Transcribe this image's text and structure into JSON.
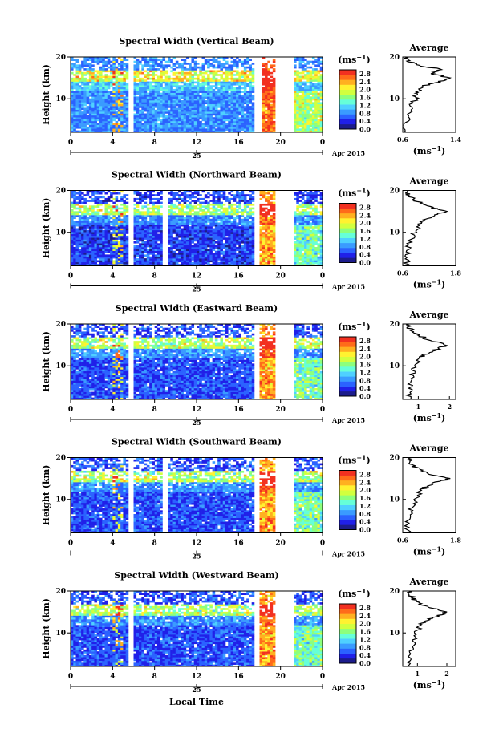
{
  "figure": {
    "xlabel": "Local Time",
    "date_tick": "25",
    "date_note": "Apr 2015",
    "colorbar_unit_base": "(ms",
    "colorbar_unit_exp": "−1",
    "avg_title": "Average",
    "avg_unit_base": "(ms",
    "avg_unit_exp": "−1",
    "ylabel": "Height (km)",
    "x_ticks": [
      "0",
      "4",
      "8",
      "12",
      "16",
      "20",
      "0"
    ],
    "colorbar_ticks": [
      "2.8",
      "2.4",
      "2.0",
      "1.6",
      "1.2",
      "0.8",
      "0.4",
      "0.0"
    ]
  },
  "colors": {
    "scale": [
      "#1c1c8c",
      "#2020e8",
      "#2b62ff",
      "#3a9bff",
      "#4fd0ff",
      "#66ffd8",
      "#8dff7c",
      "#d2ff3e",
      "#fff230",
      "#ffb020",
      "#ff6b1a",
      "#f23020"
    ]
  },
  "chart_data": [
    {
      "type": "heatmap",
      "title": "Spectral Width (Vertical Beam)",
      "xlabel": "Local Time",
      "ylabel": "Height (km)",
      "xlim": [
        0,
        24
      ],
      "ylim": [
        2,
        20
      ],
      "y_ticks": [
        "20",
        "10"
      ],
      "clim": [
        0,
        3
      ],
      "base_level": 0.8,
      "gaps": [
        [
          5.4,
          5.9
        ],
        [
          17.5,
          18.2
        ],
        [
          19.5,
          21.2
        ]
      ],
      "average": {
        "xlim": [
          0.6,
          1.4
        ],
        "x_ticks": [
          "0.6",
          "1.4"
        ],
        "profile": [
          [
            2,
            0.64
          ],
          [
            4,
            0.66
          ],
          [
            6,
            0.68
          ],
          [
            8,
            0.72
          ],
          [
            10,
            0.8
          ],
          [
            11,
            0.78
          ],
          [
            12,
            0.86
          ],
          [
            13,
            0.9
          ],
          [
            14,
            1.15
          ],
          [
            15,
            1.3
          ],
          [
            16,
            1.02
          ],
          [
            17,
            1.2
          ],
          [
            18,
            0.82
          ],
          [
            19,
            0.68
          ],
          [
            20,
            0.64
          ]
        ]
      }
    },
    {
      "type": "heatmap",
      "title": "Spectral Width (Northward Beam)",
      "xlabel": "Local Time",
      "ylabel": "Height (km)",
      "xlim": [
        0,
        24
      ],
      "ylim": [
        2,
        20
      ],
      "y_ticks": [
        "20",
        "10"
      ],
      "clim": [
        0,
        3
      ],
      "base_level": 0.5,
      "gaps": [
        [
          5.4,
          5.9
        ],
        [
          8.8,
          9.2
        ],
        [
          17.5,
          18.0
        ],
        [
          19.6,
          21.2
        ]
      ],
      "average": {
        "xlim": [
          0.6,
          1.8
        ],
        "x_ticks": [
          "0.6",
          "1.8"
        ],
        "profile": [
          [
            2,
            0.68
          ],
          [
            4,
            0.7
          ],
          [
            6,
            0.72
          ],
          [
            8,
            0.78
          ],
          [
            10,
            0.88
          ],
          [
            12,
            0.98
          ],
          [
            13,
            1.1
          ],
          [
            14,
            1.3
          ],
          [
            15,
            1.62
          ],
          [
            16,
            1.22
          ],
          [
            17,
            1.0
          ],
          [
            18,
            0.82
          ],
          [
            19,
            0.72
          ],
          [
            20,
            0.7
          ]
        ]
      }
    },
    {
      "type": "heatmap",
      "title": "Spectral Width (Eastward Beam)",
      "xlabel": "Local Time",
      "ylabel": "Height (km)",
      "xlim": [
        0,
        24
      ],
      "ylim": [
        2,
        20
      ],
      "y_ticks": [
        "20",
        "10"
      ],
      "clim": [
        0,
        3
      ],
      "base_level": 0.55,
      "gaps": [
        [
          5.4,
          5.9
        ],
        [
          17.5,
          18.0
        ],
        [
          19.6,
          21.2
        ]
      ],
      "average": {
        "xlim": [
          0.5,
          2.2
        ],
        "x_ticks": [
          "1",
          "2"
        ],
        "profile": [
          [
            2,
            0.7
          ],
          [
            4,
            0.72
          ],
          [
            6,
            0.76
          ],
          [
            8,
            0.8
          ],
          [
            10,
            0.92
          ],
          [
            12,
            1.1
          ],
          [
            13,
            1.3
          ],
          [
            14,
            1.6
          ],
          [
            15,
            1.9
          ],
          [
            16,
            1.4
          ],
          [
            17,
            1.1
          ],
          [
            18,
            0.85
          ],
          [
            19,
            0.72
          ],
          [
            20,
            0.7
          ]
        ]
      }
    },
    {
      "type": "heatmap",
      "title": "Spectral Width (Southward Beam)",
      "xlabel": "Local Time",
      "ylabel": "Height (km)",
      "xlim": [
        0,
        24
      ],
      "ylim": [
        2,
        20
      ],
      "y_ticks": [
        "20",
        "10"
      ],
      "clim": [
        0,
        3
      ],
      "base_level": 0.55,
      "gaps": [
        [
          5.4,
          5.9
        ],
        [
          8.8,
          9.2
        ],
        [
          17.5,
          18.0
        ],
        [
          19.6,
          21.2
        ]
      ],
      "average": {
        "xlim": [
          0.6,
          1.8
        ],
        "x_ticks": [
          "0.6",
          "1.8"
        ],
        "profile": [
          [
            2,
            0.7
          ],
          [
            4,
            0.72
          ],
          [
            6,
            0.74
          ],
          [
            8,
            0.8
          ],
          [
            10,
            0.9
          ],
          [
            12,
            1.0
          ],
          [
            13,
            1.12
          ],
          [
            14,
            1.35
          ],
          [
            15,
            1.65
          ],
          [
            16,
            1.25
          ],
          [
            17,
            1.0
          ],
          [
            18,
            0.84
          ],
          [
            19,
            0.74
          ],
          [
            20,
            0.72
          ]
        ]
      }
    },
    {
      "type": "heatmap",
      "title": "Spectral Width (Westward Beam)",
      "xlabel": "Local Time",
      "ylabel": "Height (km)",
      "xlim": [
        0,
        24
      ],
      "ylim": [
        2,
        20
      ],
      "y_ticks": [
        "20",
        "10"
      ],
      "clim": [
        0,
        3
      ],
      "base_level": 0.55,
      "gaps": [
        [
          5.4,
          5.9
        ],
        [
          17.5,
          18.0
        ],
        [
          19.6,
          21.2
        ]
      ],
      "average": {
        "xlim": [
          0.5,
          2.3
        ],
        "x_ticks": [
          "1",
          "2"
        ],
        "profile": [
          [
            2,
            0.72
          ],
          [
            4,
            0.74
          ],
          [
            6,
            0.78
          ],
          [
            8,
            0.84
          ],
          [
            10,
            0.95
          ],
          [
            12,
            1.1
          ],
          [
            13,
            1.3
          ],
          [
            14,
            1.7
          ],
          [
            15,
            1.95
          ],
          [
            16,
            1.45
          ],
          [
            17,
            1.1
          ],
          [
            18,
            0.86
          ],
          [
            19,
            0.75
          ],
          [
            20,
            0.72
          ]
        ]
      }
    }
  ]
}
